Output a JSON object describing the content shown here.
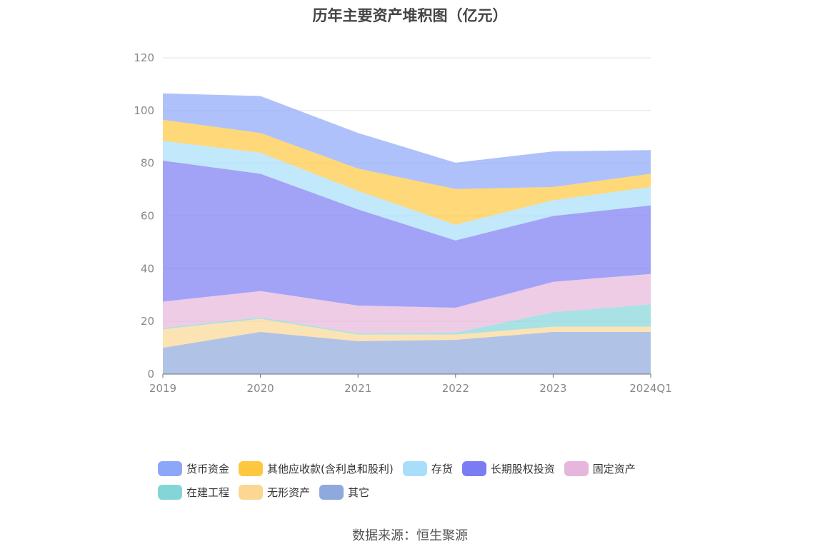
{
  "chart_data": {
    "type": "area",
    "stacked": true,
    "title": "历年主要资产堆积图（亿元）",
    "categories": [
      "2019",
      "2020",
      "2021",
      "2022",
      "2023",
      "2024Q1"
    ],
    "ylim": [
      0,
      120
    ],
    "yticks": [
      0,
      20,
      40,
      60,
      80,
      100,
      120
    ],
    "grid": true,
    "legend_position": "bottom",
    "series": [
      {
        "name": "其它",
        "color": "#8fa9dc",
        "values": [
          10,
          16,
          12.5,
          13,
          16,
          16
        ]
      },
      {
        "name": "无形资产",
        "color": "#fbd793",
        "values": [
          7,
          5,
          2.5,
          2,
          2,
          2
        ]
      },
      {
        "name": "在建工程",
        "color": "#84d5d8",
        "values": [
          0.5,
          0.5,
          0.5,
          0.7,
          5.5,
          8.5
        ]
      },
      {
        "name": "固定资产",
        "color": "#e7b6dc",
        "values": [
          10,
          10,
          10.5,
          9.5,
          11.5,
          11.5
        ]
      },
      {
        "name": "长期股权投资",
        "color": "#7b7cf2",
        "values": [
          53.5,
          44.5,
          36.5,
          25.5,
          25,
          26
        ]
      },
      {
        "name": "存货",
        "color": "#a8defa",
        "values": [
          7.5,
          8,
          7,
          6,
          6,
          7
        ]
      },
      {
        "name": "其他应收款(含利息和股利)",
        "color": "#fdc840",
        "values": [
          8,
          7.5,
          8.5,
          13.5,
          5,
          5
        ]
      },
      {
        "name": "货币资金",
        "color": "#8da7f8",
        "values": [
          10,
          14,
          13.5,
          10,
          13.5,
          9
        ]
      }
    ]
  },
  "legend_order": [
    {
      "name": "货币资金",
      "color": "#8da7f8"
    },
    {
      "name": "其他应收款(含利息和股利)",
      "color": "#fdc840"
    },
    {
      "name": "存货",
      "color": "#a8defa"
    },
    {
      "name": "长期股权投资",
      "color": "#7b7cf2"
    },
    {
      "name": "固定资产",
      "color": "#e7b6dc"
    },
    {
      "name": "在建工程",
      "color": "#84d5d8"
    },
    {
      "name": "无形资产",
      "color": "#fbd793"
    },
    {
      "name": "其它",
      "color": "#8fa9dc"
    }
  ],
  "source": "数据来源：恒生聚源"
}
